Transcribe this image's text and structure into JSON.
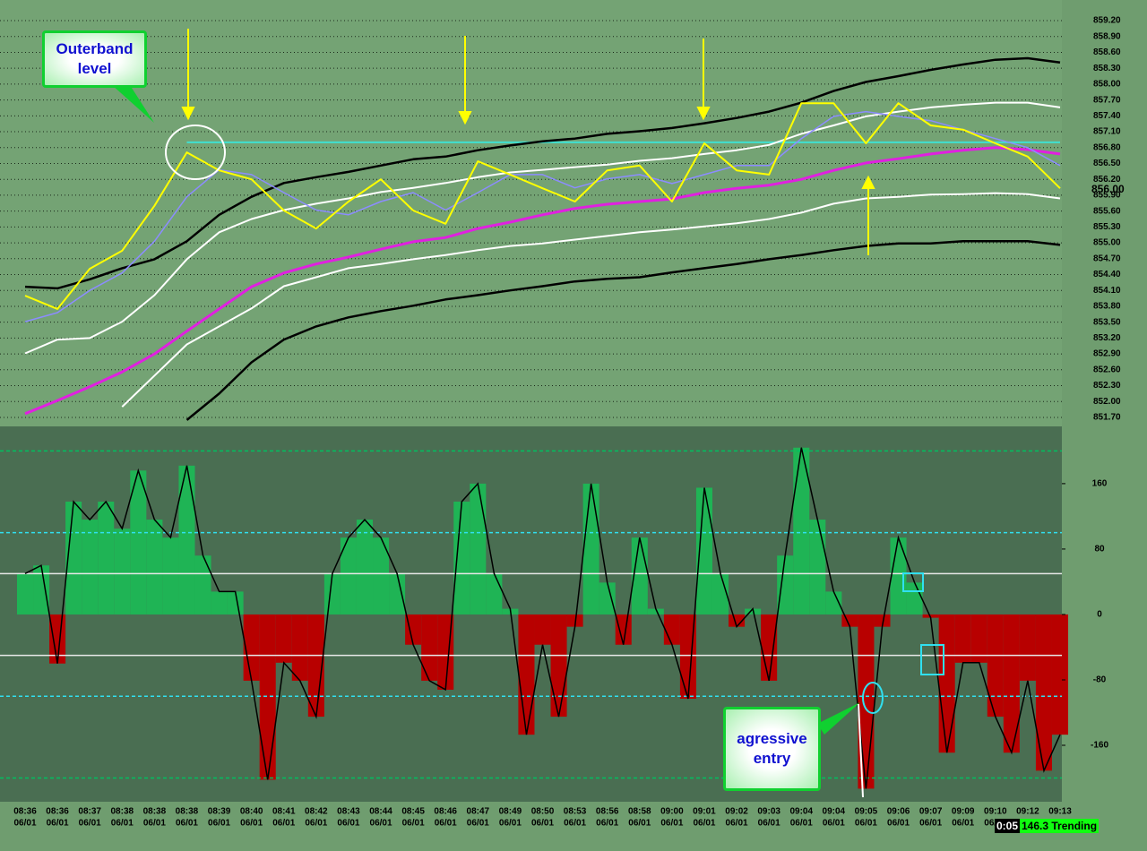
{
  "chart_data": [
    {
      "type": "line",
      "categories": [
        "08:36",
        "08:36",
        "08:37",
        "08:38",
        "08:38",
        "08:38",
        "08:39",
        "08:40",
        "08:41",
        "08:42",
        "08:43",
        "08:44",
        "08:45",
        "08:46",
        "08:47",
        "08:49",
        "08:50",
        "08:53",
        "08:56",
        "08:58",
        "09:00",
        "09:01",
        "09:02",
        "09:03",
        "09:04",
        "09:04",
        "09:05",
        "09:06",
        "09:07",
        "09:09",
        "09:10",
        "09:12",
        "09:13"
      ],
      "date": "06/01",
      "ylim": [
        851.53,
        859.59
      ],
      "yticks": [
        {
          "value": 859.2,
          "label": "859.20"
        },
        {
          "value": 858.9,
          "label": "858.90"
        },
        {
          "value": 858.6,
          "label": "858.60"
        },
        {
          "value": 858.3,
          "label": "858.30"
        },
        {
          "value": 858.0,
          "label": "858.00"
        },
        {
          "value": 857.7,
          "label": "857.70"
        },
        {
          "value": 857.4,
          "label": "857.40"
        },
        {
          "value": 857.1,
          "label": "857.10"
        },
        {
          "value": 856.8,
          "label": "856.80"
        },
        {
          "value": 856.5,
          "label": "856.50"
        },
        {
          "value": 856.2,
          "label": "856.20"
        },
        {
          "value": 855.9,
          "label": "855.90"
        },
        {
          "value": 855.6,
          "label": "855.60"
        },
        {
          "value": 855.3,
          "label": "855.30"
        },
        {
          "value": 855.0,
          "label": "855.00"
        },
        {
          "value": 854.7,
          "label": "854.70"
        },
        {
          "value": 854.4,
          "label": "854.40"
        },
        {
          "value": 854.1,
          "label": "854.10"
        },
        {
          "value": 853.8,
          "label": "853.80"
        },
        {
          "value": 853.5,
          "label": "853.50"
        },
        {
          "value": 853.2,
          "label": "853.20"
        },
        {
          "value": 852.9,
          "label": "852.90"
        },
        {
          "value": 852.6,
          "label": "852.60"
        },
        {
          "value": 852.3,
          "label": "852.30"
        },
        {
          "value": 852.0,
          "label": "852.00"
        },
        {
          "value": 851.7,
          "label": "851.70"
        }
      ],
      "grid": true,
      "last_price": {
        "value": 856.0,
        "label": "856.00"
      },
      "resistance": {
        "value": 856.9,
        "color": "#40e0d0"
      },
      "series": [
        {
          "color": "#000000",
          "width": 2.5,
          "values": [
            854.17,
            854.14,
            854.31,
            854.52,
            854.69,
            855.03,
            855.53,
            855.87,
            856.13,
            856.24,
            856.34,
            856.46,
            856.58,
            856.63,
            856.75,
            856.84,
            856.92,
            856.97,
            857.06,
            857.11,
            857.17,
            857.26,
            857.36,
            857.48,
            857.65,
            857.87,
            858.04,
            858.15,
            858.27,
            858.37,
            858.46,
            858.49,
            858.41
          ]
        },
        {
          "color": "#000000",
          "width": 2.5,
          "values": [
            null,
            null,
            null,
            null,
            null,
            851.65,
            852.15,
            852.74,
            853.17,
            853.42,
            853.59,
            853.71,
            853.81,
            853.93,
            854.01,
            854.1,
            854.18,
            854.27,
            854.32,
            854.35,
            854.44,
            854.52,
            854.6,
            854.69,
            854.77,
            854.86,
            854.94,
            854.99,
            854.99,
            855.03,
            855.03,
            855.03,
            854.96
          ]
        },
        {
          "color": "#ffffff",
          "width": 2,
          "values": [
            852.91,
            853.17,
            853.2,
            853.51,
            854.01,
            854.69,
            855.2,
            855.45,
            855.62,
            855.74,
            855.84,
            855.96,
            856.04,
            856.13,
            856.24,
            856.33,
            856.38,
            856.43,
            856.48,
            856.55,
            856.6,
            856.68,
            856.75,
            856.85,
            857.06,
            857.22,
            857.39,
            857.48,
            857.56,
            857.61,
            857.65,
            857.65,
            857.56
          ]
        },
        {
          "color": "#ffffff",
          "width": 2,
          "values": [
            null,
            null,
            null,
            851.9,
            852.49,
            853.08,
            853.42,
            853.76,
            854.18,
            854.35,
            854.52,
            854.6,
            854.69,
            854.77,
            854.86,
            854.94,
            854.99,
            855.06,
            855.13,
            855.2,
            855.25,
            855.31,
            855.37,
            855.45,
            855.57,
            855.74,
            855.84,
            855.87,
            855.91,
            855.92,
            855.94,
            855.92,
            855.84
          ]
        },
        {
          "color": "#e020e0",
          "width": 3,
          "values": [
            851.77,
            852.02,
            852.28,
            852.56,
            852.9,
            853.33,
            853.75,
            854.17,
            854.43,
            854.6,
            854.73,
            854.88,
            855.02,
            855.1,
            855.27,
            855.39,
            855.53,
            855.65,
            855.73,
            855.78,
            855.83,
            855.95,
            856.03,
            856.09,
            856.2,
            856.37,
            856.51,
            856.59,
            856.68,
            856.75,
            856.8,
            856.76,
            856.68
          ]
        },
        {
          "color": "#8c8cff",
          "width": 1.5,
          "values": [
            853.51,
            853.68,
            854.1,
            854.43,
            855.03,
            855.87,
            856.38,
            856.29,
            855.95,
            855.62,
            855.53,
            855.78,
            855.95,
            855.62,
            855.95,
            856.29,
            856.29,
            856.04,
            856.21,
            856.29,
            856.12,
            856.29,
            856.46,
            856.46,
            856.97,
            857.39,
            857.48,
            857.39,
            857.31,
            857.14,
            856.97,
            856.8,
            856.46
          ]
        },
        {
          "color": "#ffff00",
          "width": 2,
          "values": [
            854.0,
            853.75,
            854.51,
            854.85,
            855.7,
            856.71,
            856.37,
            856.2,
            855.61,
            855.27,
            855.78,
            856.2,
            855.61,
            855.36,
            856.54,
            856.29,
            856.03,
            855.78,
            856.37,
            856.46,
            855.78,
            856.88,
            856.37,
            856.29,
            857.64,
            857.64,
            856.88,
            857.64,
            857.22,
            857.14,
            856.88,
            856.63,
            856.03
          ]
        }
      ]
    },
    {
      "type": "bar",
      "ylim": [
        -229,
        230
      ],
      "yticks": [
        160,
        80,
        0,
        -80,
        -160
      ],
      "colors": {
        "positive": "#1fb455",
        "negative": "#b80000"
      },
      "levels": [
        {
          "value": 200,
          "color": "#00c060"
        },
        {
          "value": 100,
          "color": "#30e0f0"
        },
        {
          "value": 50,
          "color": "#e8e8e8"
        },
        {
          "value": -50,
          "color": "#e8e8e8"
        },
        {
          "value": -100,
          "color": "#30e0f0"
        },
        {
          "value": -200,
          "color": "#00c060"
        }
      ],
      "values": [
        50,
        60,
        -60,
        138,
        116,
        138,
        105,
        176,
        116,
        94,
        182,
        72,
        28,
        28,
        -81,
        -202,
        -59,
        -81,
        -125,
        50,
        94,
        116,
        94,
        50,
        -37,
        -81,
        -92,
        138,
        160,
        50,
        7,
        -147,
        -37,
        -125,
        -15,
        160,
        39,
        -37,
        94,
        7,
        -37,
        -103,
        155,
        50,
        -15,
        7,
        -81,
        72,
        204,
        116,
        28,
        -15,
        -213,
        -15,
        94,
        39,
        -4,
        -169,
        -59,
        -59,
        -125,
        -169,
        -81,
        -191,
        -147
      ]
    }
  ],
  "annotations": [
    "Outerband level",
    "agressive entry"
  ],
  "status": {
    "time": "0:05",
    "state": "146.3 Trending"
  }
}
